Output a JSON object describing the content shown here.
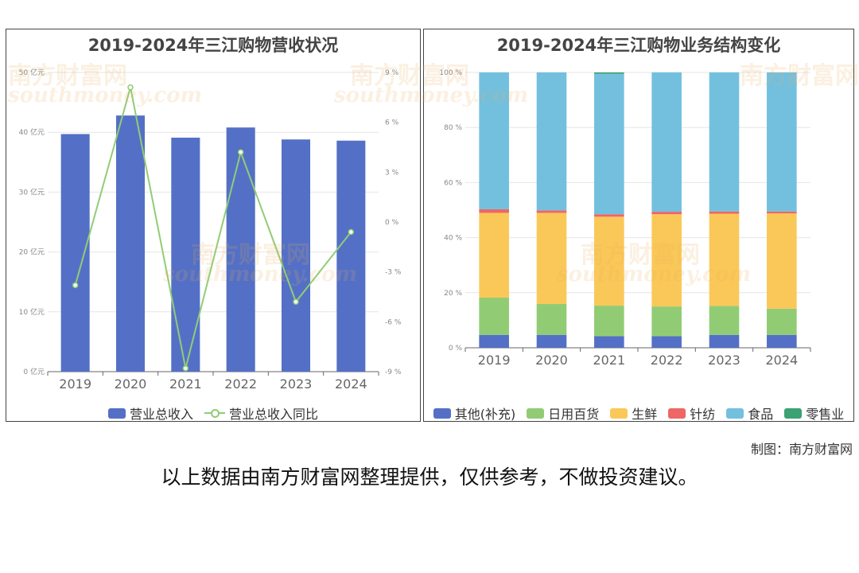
{
  "chart_data": [
    {
      "type": "bar",
      "title": "2019-2024年三江购物营收状况",
      "categories": [
        "2019",
        "2020",
        "2021",
        "2022",
        "2023",
        "2024"
      ],
      "series": [
        {
          "name": "营业总收入",
          "type": "bar",
          "axis": "left",
          "color": "#5470c6",
          "values": [
            39.7,
            42.8,
            39.1,
            40.8,
            38.8,
            38.6
          ]
        },
        {
          "name": "营业总收入同比",
          "type": "line",
          "axis": "right",
          "color": "#91cc75",
          "values": [
            -3.8,
            8.1,
            -8.8,
            4.2,
            -4.8,
            -0.6
          ]
        }
      ],
      "y_left": {
        "ylim": [
          0,
          50
        ],
        "ticks": [
          "0 亿元",
          "10 亿元",
          "20 亿元",
          "30 亿元",
          "40 亿元",
          "50 亿元"
        ]
      },
      "y_right": {
        "ylim": [
          -9,
          9
        ],
        "ticks": [
          "-9 %",
          "-6 %",
          "-3 %",
          "0 %",
          "3 %",
          "6 %",
          "9 %"
        ]
      },
      "legend_position": "bottom",
      "grid": true
    },
    {
      "type": "bar",
      "stacked": true,
      "title": "2019-2024年三江购物业务结构变化",
      "categories": [
        "2019",
        "2020",
        "2021",
        "2022",
        "2023",
        "2024"
      ],
      "series": [
        {
          "name": "其他(补充)",
          "color": "#5470c6",
          "values": [
            4.7,
            4.7,
            4.2,
            4.2,
            4.7,
            4.7
          ]
        },
        {
          "name": "日用百货",
          "color": "#91cc75",
          "values": [
            13.5,
            11.2,
            11.1,
            10.8,
            10.5,
            9.5
          ]
        },
        {
          "name": "生鲜",
          "color": "#fac858",
          "values": [
            30.8,
            33.1,
            32.3,
            33.5,
            33.5,
            34.6
          ]
        },
        {
          "name": "针纺",
          "color": "#ee6666",
          "values": [
            1.3,
            0.9,
            0.9,
            0.9,
            0.8,
            0.7
          ]
        },
        {
          "name": "食品",
          "color": "#73c0de",
          "values": [
            49.7,
            50.1,
            51.0,
            50.6,
            50.5,
            50.5
          ]
        },
        {
          "name": "零售业",
          "color": "#3ba272",
          "values": [
            0,
            0,
            0.5,
            0,
            0,
            0
          ]
        }
      ],
      "y": {
        "ylim": [
          0,
          100
        ],
        "ticks": [
          "0 %",
          "20 %",
          "40 %",
          "60 %",
          "80 %",
          "100 %"
        ]
      },
      "legend_position": "bottom",
      "grid": true
    }
  ],
  "watermark": {
    "cn": "南方财富网",
    "en": "southmoney.com"
  },
  "credit": "制图：南方财富网",
  "disclaimer": "以上数据由南方财富网整理提供，仅供参考，不做投资建议。"
}
